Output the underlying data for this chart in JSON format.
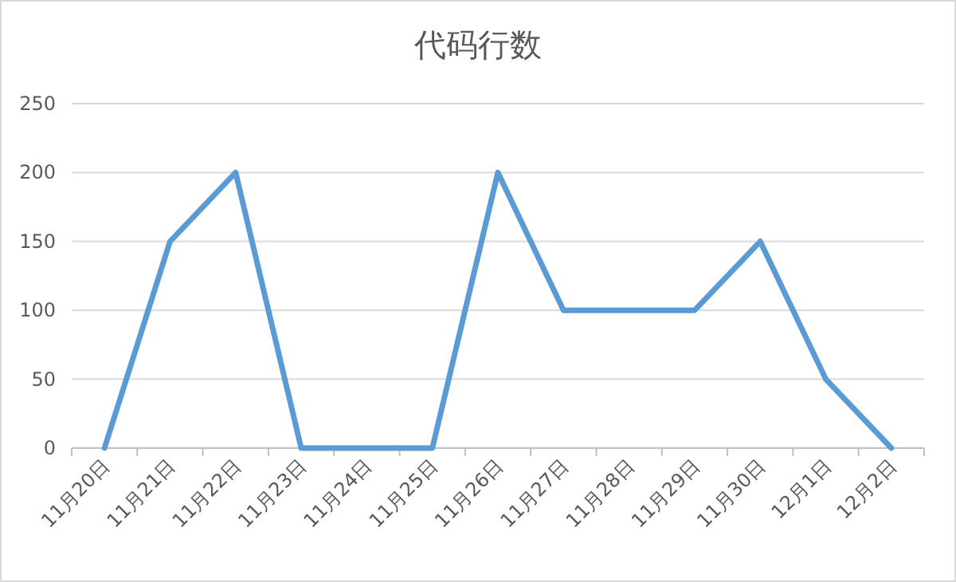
{
  "chart_data": {
    "type": "line",
    "title": "代码行数",
    "categories": [
      "11月20日",
      "11月21日",
      "11月22日",
      "11月23日",
      "11月24日",
      "11月25日",
      "11月26日",
      "11月27日",
      "11月28日",
      "11月29日",
      "11月30日",
      "12月1日",
      "12月2日"
    ],
    "series": [
      {
        "color": "#5b9bd5",
        "values": [
          0,
          150,
          200,
          0,
          0,
          0,
          200,
          100,
          100,
          100,
          150,
          50,
          0
        ]
      }
    ],
    "ylim": [
      0,
      250
    ],
    "yticks": [
      0,
      50,
      100,
      150,
      200,
      250
    ],
    "grid": "y",
    "marker": "none",
    "line_style": "solid"
  }
}
